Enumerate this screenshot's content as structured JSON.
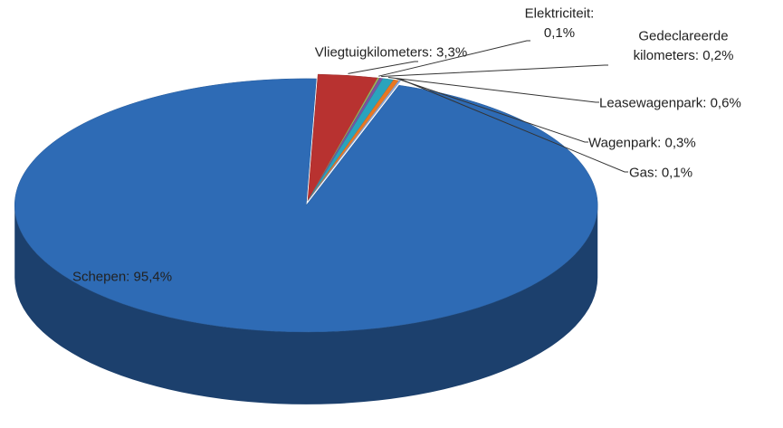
{
  "chart_data": {
    "type": "pie3d",
    "values": [
      3.3,
      0.1,
      0.2,
      0.6,
      0.3,
      0.1,
      95.4
    ],
    "value_labels": [
      "Vliegtuigkilometers: 3,3%",
      "Elektriciteit:\n0,1%",
      "Gedeclareerde\nkilometers: 0,2%",
      "Leasewagenpark: 0,6%",
      "Wagenpark: 0,3%",
      "Gas: 0,1%",
      "Schepen: 95,4%"
    ],
    "colors": [
      "#b83230",
      "#9bbb59",
      "#7b52a0",
      "#2aa3bd",
      "#e87722",
      "#8eaadb",
      "#2e6bb5"
    ]
  }
}
